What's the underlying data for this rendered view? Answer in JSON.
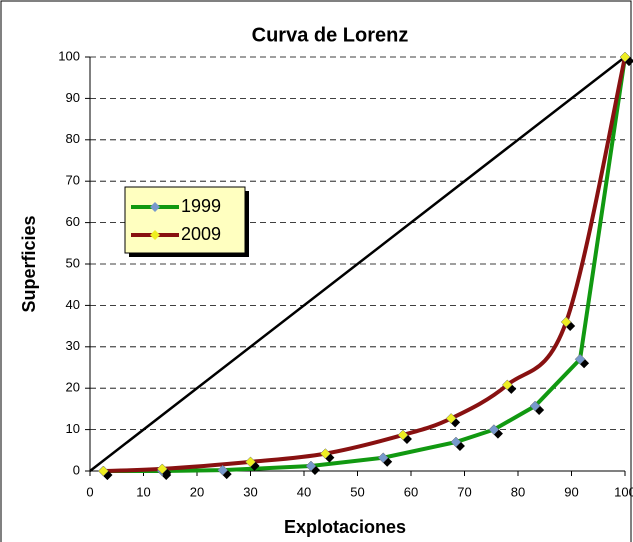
{
  "chart_data": {
    "type": "line",
    "title": "Curva de Lorenz",
    "x_label": "Explotaciones",
    "y_label": "Superficies",
    "xlim": [
      0,
      100
    ],
    "xticks": [
      0,
      10,
      20,
      30,
      40,
      50,
      60,
      70,
      80,
      90,
      100
    ],
    "ylim": [
      0,
      100
    ],
    "yticks": [
      0,
      10,
      20,
      30,
      40,
      50,
      60,
      70,
      80,
      90,
      100
    ],
    "grid": true,
    "legend": "left",
    "series": [
      {
        "x": [
          0,
          100
        ],
        "values": [
          0,
          100
        ],
        "color": "#000000"
      },
      {
        "name": "1999",
        "color": "#119911",
        "marker_color": "#7799cc",
        "x": [
          2.5,
          13.5,
          24.8,
          41.3,
          54.8,
          68.4,
          75.5,
          83.2,
          91.6,
          100
        ],
        "values": [
          0,
          0,
          0.2,
          1.2,
          3.2,
          7,
          10,
          15.7,
          27,
          100
        ]
      },
      {
        "name": "2009",
        "color": "#881111",
        "marker_color": "#eeee22",
        "smooth": true,
        "x": [
          2.5,
          13.5,
          30,
          44,
          58.5,
          67.5,
          78,
          89,
          100
        ],
        "values": [
          0,
          0.5,
          2.2,
          4.2,
          8.7,
          12.7,
          20.8,
          36,
          100
        ]
      }
    ]
  }
}
